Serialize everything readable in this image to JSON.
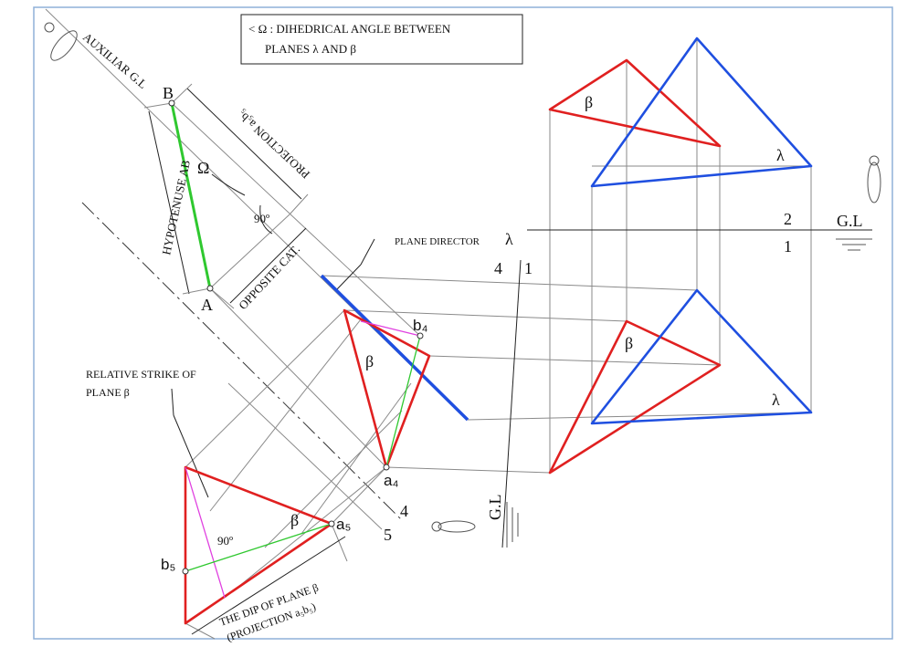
{
  "header": {
    "title_line1": "< Ω : DIHEDRICAL ANGLE BETWEEN",
    "title_line2": "PLANES λ AND β"
  },
  "labels": [
    "AUXILIAR G.L",
    "B",
    "A",
    "Ω",
    "90º",
    "HYPOTENUSE  AB",
    "PROJECTION  a₅b₅",
    "OPPOSITE CAT.",
    "PLANE DIRECTOR",
    "λ",
    "RELATIVE STRIKE OF",
    "PLANE β",
    "β",
    "b₄",
    "a₄",
    "a₅",
    "b₅",
    "β",
    "90º",
    "THE DIP OF PLANE β",
    "(PROJECTION  a₅b₅)",
    "4",
    "5",
    "4",
    "1",
    "G.L",
    "β",
    "λ",
    "2",
    "1",
    "G.L",
    "β",
    "λ"
  ]
}
